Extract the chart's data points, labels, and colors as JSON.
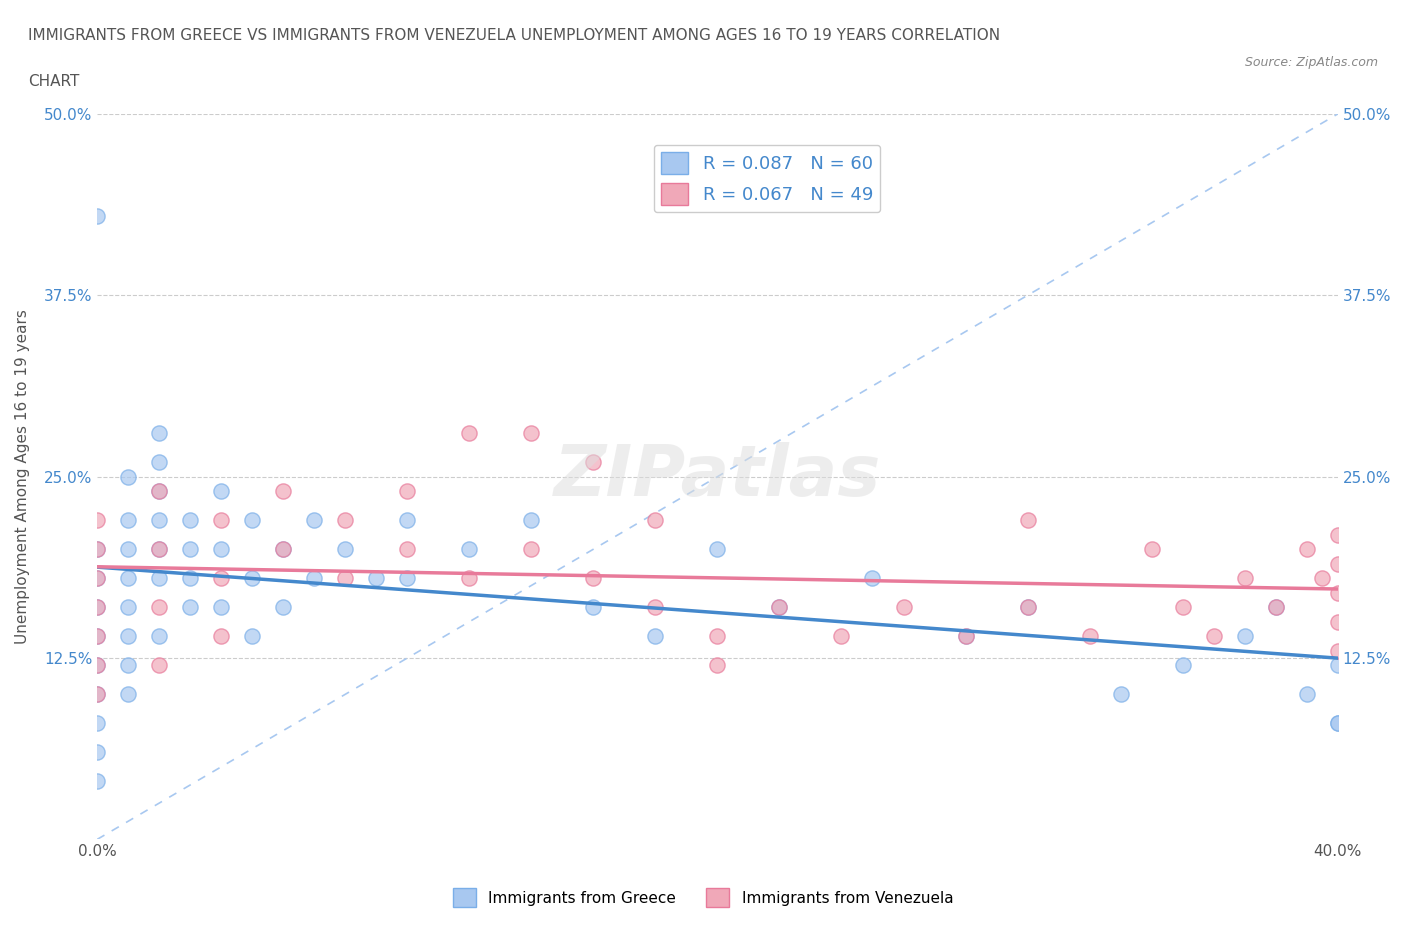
{
  "title_line1": "IMMIGRANTS FROM GREECE VS IMMIGRANTS FROM VENEZUELA UNEMPLOYMENT AMONG AGES 16 TO 19 YEARS CORRELATION",
  "title_line2": "CHART",
  "source": "Source: ZipAtlas.com",
  "xlabel": "",
  "ylabel": "Unemployment Among Ages 16 to 19 years",
  "xlim": [
    0.0,
    0.4
  ],
  "ylim": [
    0.0,
    0.5
  ],
  "xticks": [
    0.0,
    0.1,
    0.2,
    0.3,
    0.4
  ],
  "xticklabels": [
    "0.0%",
    "",
    "",
    "",
    "40.0%"
  ],
  "yticks": [
    0.0,
    0.125,
    0.25,
    0.375,
    0.5
  ],
  "yticklabels": [
    "",
    "12.5%",
    "25.0%",
    "37.5%",
    "50.0%"
  ],
  "greece_color": "#a8c8f0",
  "greece_edge": "#7aaee8",
  "venezuela_color": "#f0a8b8",
  "venezuela_edge": "#e87a9a",
  "trend_greece_color": "#4488cc",
  "trend_venezuela_color": "#e87a9a",
  "diagonal_color": "#a8c8f0",
  "R_greece": 0.087,
  "N_greece": 60,
  "R_venezuela": 0.067,
  "N_venezuela": 49,
  "legend_label_greece": "Immigrants from Greece",
  "legend_label_venezuela": "Immigrants from Venezuela",
  "greece_x": [
    0.0,
    0.0,
    0.0,
    0.0,
    0.0,
    0.0,
    0.0,
    0.0,
    0.0,
    0.0,
    0.01,
    0.01,
    0.01,
    0.01,
    0.01,
    0.01,
    0.01,
    0.01,
    0.02,
    0.02,
    0.02,
    0.02,
    0.02,
    0.02,
    0.02,
    0.03,
    0.03,
    0.03,
    0.03,
    0.04,
    0.04,
    0.04,
    0.05,
    0.05,
    0.05,
    0.06,
    0.06,
    0.07,
    0.07,
    0.08,
    0.09,
    0.1,
    0.1,
    0.12,
    0.14,
    0.16,
    0.18,
    0.2,
    0.22,
    0.25,
    0.28,
    0.3,
    0.33,
    0.35,
    0.37,
    0.38,
    0.39,
    0.4,
    0.4,
    0.4
  ],
  "greece_y": [
    0.43,
    0.2,
    0.18,
    0.16,
    0.14,
    0.12,
    0.1,
    0.08,
    0.06,
    0.04,
    0.25,
    0.22,
    0.2,
    0.18,
    0.16,
    0.14,
    0.12,
    0.1,
    0.28,
    0.26,
    0.24,
    0.22,
    0.2,
    0.18,
    0.14,
    0.22,
    0.2,
    0.18,
    0.16,
    0.24,
    0.2,
    0.16,
    0.22,
    0.18,
    0.14,
    0.2,
    0.16,
    0.22,
    0.18,
    0.2,
    0.18,
    0.22,
    0.18,
    0.2,
    0.22,
    0.16,
    0.14,
    0.2,
    0.16,
    0.18,
    0.14,
    0.16,
    0.1,
    0.12,
    0.14,
    0.16,
    0.1,
    0.08,
    0.12,
    0.08
  ],
  "venezuela_x": [
    0.0,
    0.0,
    0.0,
    0.0,
    0.0,
    0.0,
    0.0,
    0.02,
    0.02,
    0.02,
    0.02,
    0.04,
    0.04,
    0.04,
    0.06,
    0.06,
    0.08,
    0.08,
    0.1,
    0.1,
    0.12,
    0.12,
    0.14,
    0.14,
    0.16,
    0.16,
    0.18,
    0.18,
    0.2,
    0.2,
    0.22,
    0.24,
    0.26,
    0.28,
    0.3,
    0.3,
    0.32,
    0.34,
    0.35,
    0.36,
    0.37,
    0.38,
    0.39,
    0.395,
    0.4,
    0.4,
    0.4,
    0.4,
    0.4
  ],
  "venezuela_y": [
    0.22,
    0.2,
    0.18,
    0.16,
    0.14,
    0.12,
    0.1,
    0.24,
    0.2,
    0.16,
    0.12,
    0.22,
    0.18,
    0.14,
    0.24,
    0.2,
    0.22,
    0.18,
    0.24,
    0.2,
    0.28,
    0.18,
    0.28,
    0.2,
    0.26,
    0.18,
    0.22,
    0.16,
    0.14,
    0.12,
    0.16,
    0.14,
    0.16,
    0.14,
    0.22,
    0.16,
    0.14,
    0.2,
    0.16,
    0.14,
    0.18,
    0.16,
    0.2,
    0.18,
    0.21,
    0.19,
    0.17,
    0.15,
    0.13
  ]
}
